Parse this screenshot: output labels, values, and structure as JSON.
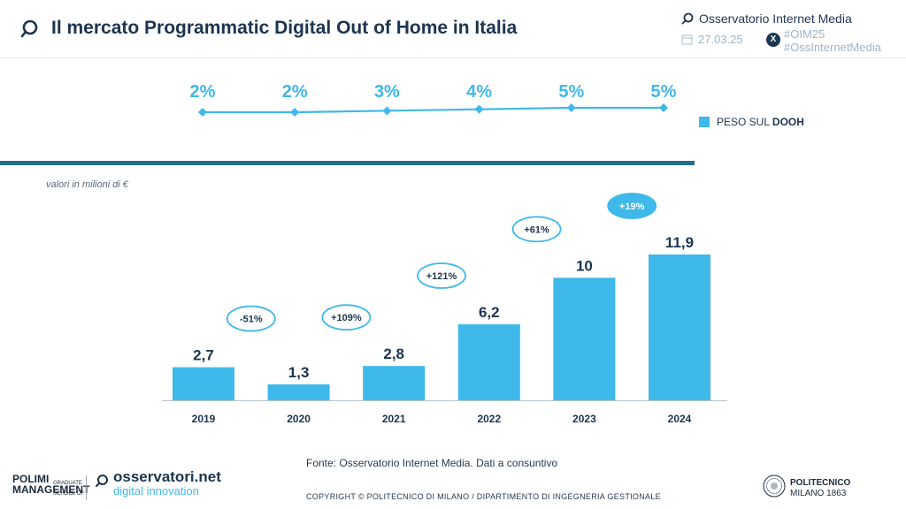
{
  "header": {
    "title": "Il mercato Programmatic Digital Out of Home in Italia",
    "brand": "Osservatorio Internet Media",
    "date": "27.03.25",
    "hashtags": [
      "#OIM25",
      "#OssInternetMedia"
    ],
    "x_icon": "X"
  },
  "legend": {
    "label_prefix": "PESO SUL ",
    "label_bold": "DOOH"
  },
  "units_note": "valori in milioni di €",
  "source_note": "Fonte: Osservatorio Internet Media. Dati a consuntivo",
  "copyright": "COPYRIGHT © POLITECNICO DI MILANO / DIPARTIMENTO DI INGEGNERIA GESTIONALE",
  "footer": {
    "logo1_line1": "POLIMI",
    "logo1_line2": "MANAGEMENT",
    "logo1_small": "GRADUATE SCHOOL OF",
    "logo2_main": "osservatori.net",
    "logo2_sub": "digital innovation",
    "polimi_name": "POLITECNICO",
    "polimi_sub": "MILANO 1863"
  },
  "colors": {
    "bar": "#3fb8ea",
    "line": "#3fb8ea",
    "dark": "#1c3550",
    "growth_text": "#1c3550"
  },
  "chart_data": [
    {
      "type": "line",
      "categories": [
        "2019",
        "2020",
        "2021",
        "2022",
        "2023",
        "2024"
      ],
      "values": [
        2,
        2,
        3,
        4,
        5,
        5
      ],
      "value_labels": [
        "2%",
        "2%",
        "3%",
        "4%",
        "5%",
        "5%"
      ],
      "series": [
        {
          "name": "PESO SUL DOOH",
          "values": [
            2,
            2,
            3,
            4,
            5,
            5
          ]
        }
      ],
      "unit": "%"
    },
    {
      "type": "bar",
      "categories": [
        "2019",
        "2020",
        "2021",
        "2022",
        "2023",
        "2024"
      ],
      "values": [
        2.7,
        1.3,
        2.8,
        6.2,
        10,
        11.9
      ],
      "value_labels": [
        "2,7",
        "1,3",
        "2,8",
        "6,2",
        "10",
        "11,9"
      ],
      "growth_labels": [
        "-51%",
        "+109%",
        "+121%",
        "+61%",
        "+19%"
      ],
      "ylabel": "valori in milioni di €",
      "grid": false
    }
  ]
}
